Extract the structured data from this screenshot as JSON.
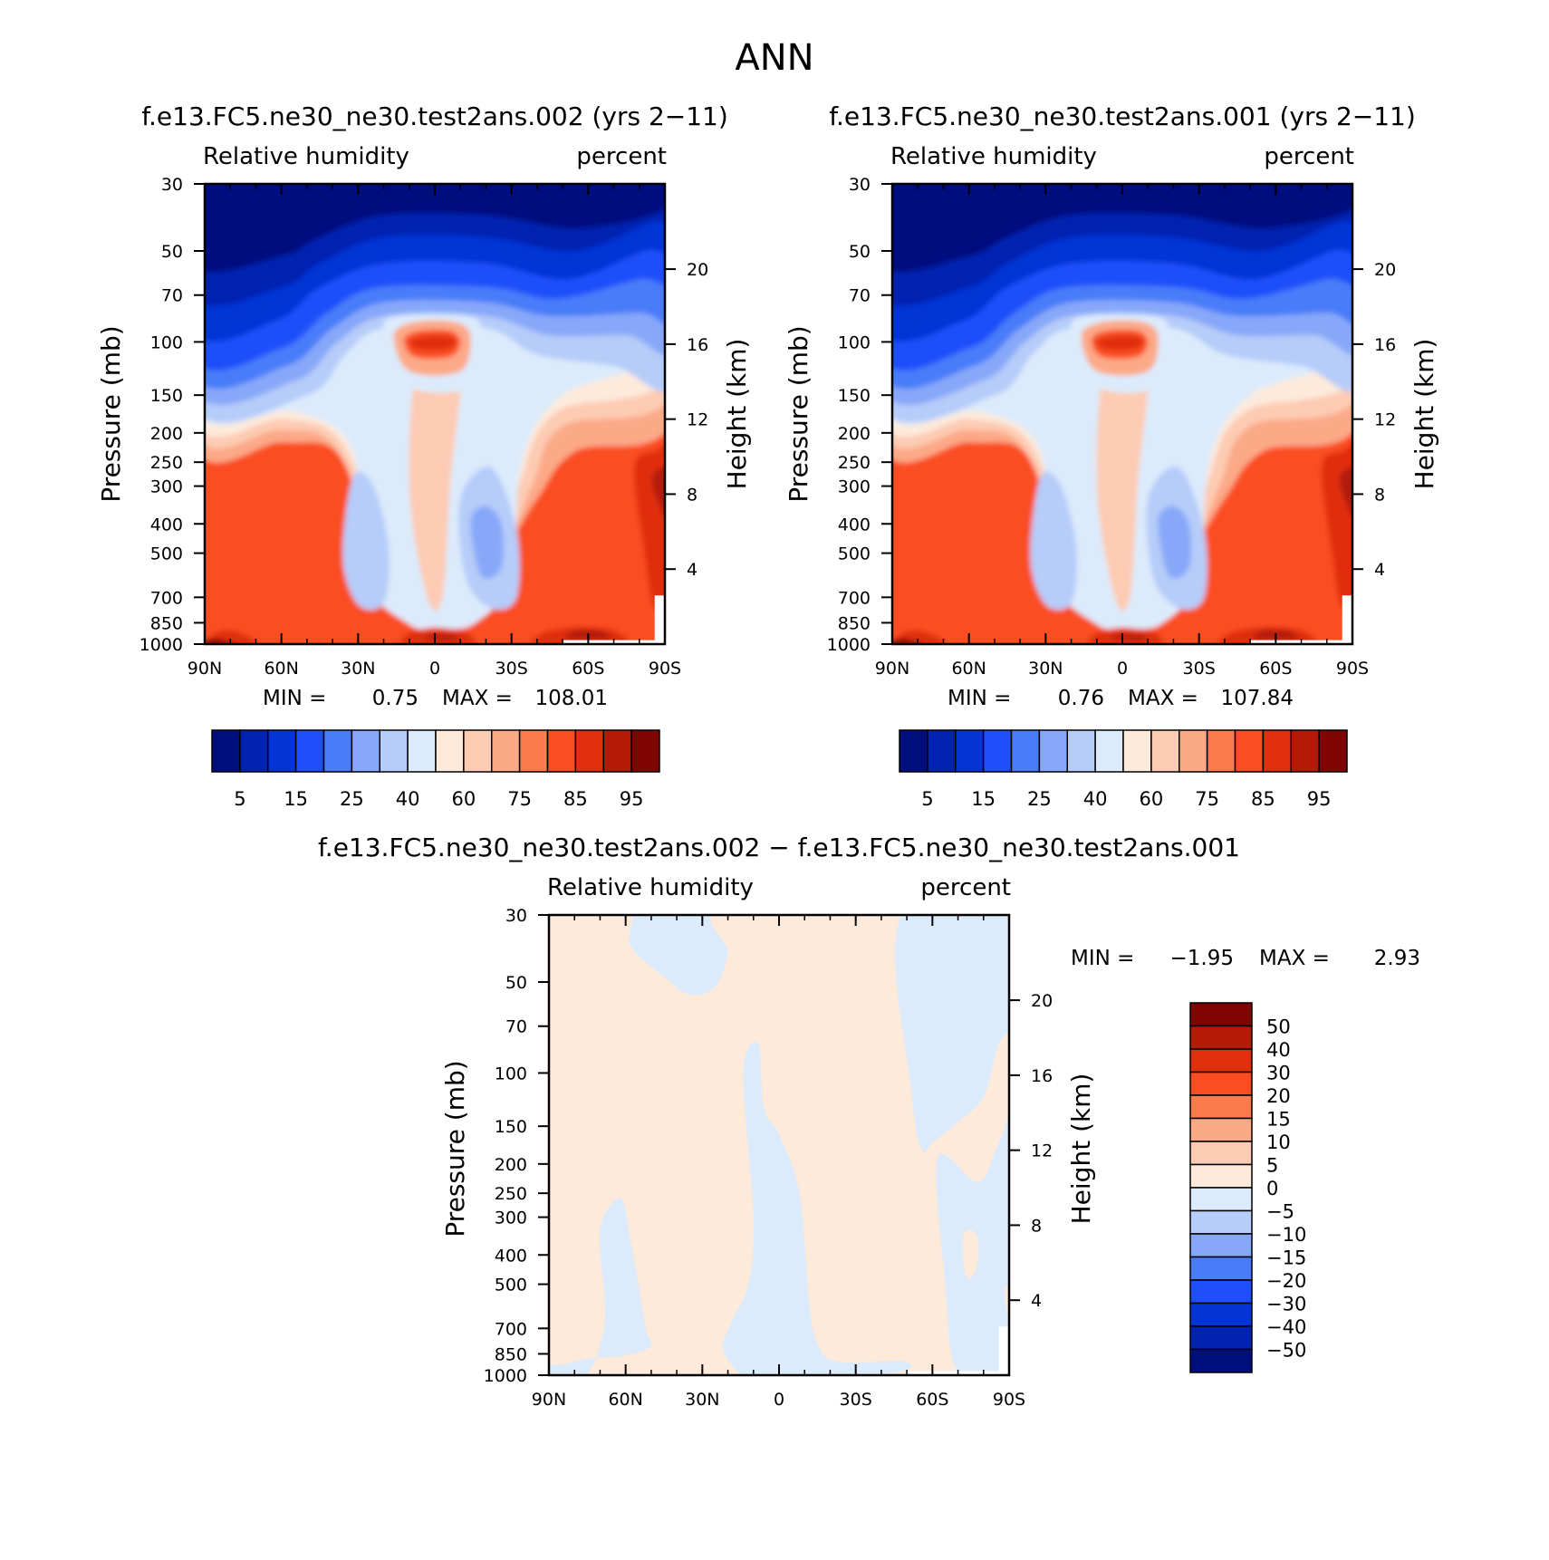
{
  "page_title": "ANN",
  "chart_data": [
    {
      "type": "heatmap",
      "case": "f.e13.FC5.ne30_ne30.test2ans.002 (yrs 2−11)",
      "variable": "Relative humidity",
      "units": "percent",
      "ylabel": "Pressure (mb)",
      "ylabel_right": "Height (km)",
      "x_ticks": [
        "90N",
        "60N",
        "30N",
        "0",
        "30S",
        "60S",
        "90S"
      ],
      "y_ticks": [
        "30",
        "50",
        "70",
        "100",
        "150",
        "200",
        "250",
        "300",
        "400",
        "500",
        "700",
        "850",
        "1000"
      ],
      "y_ticks_right": [
        "20",
        "16",
        "12",
        "8",
        "4"
      ],
      "ylim": [
        1000,
        30
      ],
      "stats": {
        "min_label": "MIN =",
        "min": "0.75",
        "max_label": "MAX =",
        "max": "108.01"
      },
      "colorbar": {
        "orientation": "horizontal",
        "labels": [
          "5",
          "15",
          "25",
          "40",
          "60",
          "75",
          "85",
          "95"
        ],
        "colors": [
          "#000e7e",
          "#0024b1",
          "#0534d6",
          "#1f4ffa",
          "#4a7bf9",
          "#87a8f9",
          "#b6ccf9",
          "#dcebfc",
          "#fdeadb",
          "#fdcbb3",
          "#fca987",
          "#fc7b4d",
          "#fa4d23",
          "#e02f0d",
          "#b31b07",
          "#7e0502"
        ]
      }
    },
    {
      "type": "heatmap",
      "case": "f.e13.FC5.ne30_ne30.test2ans.001 (yrs 2−11)",
      "variable": "Relative humidity",
      "units": "percent",
      "ylabel": "Pressure (mb)",
      "ylabel_right": "Height (km)",
      "x_ticks": [
        "90N",
        "60N",
        "30N",
        "0",
        "30S",
        "60S",
        "90S"
      ],
      "y_ticks": [
        "30",
        "50",
        "70",
        "100",
        "150",
        "200",
        "250",
        "300",
        "400",
        "500",
        "700",
        "850",
        "1000"
      ],
      "y_ticks_right": [
        "20",
        "16",
        "12",
        "8",
        "4"
      ],
      "ylim": [
        1000,
        30
      ],
      "stats": {
        "min_label": "MIN =",
        "min": "0.76",
        "max_label": "MAX =",
        "max": "107.84"
      },
      "colorbar": {
        "orientation": "horizontal",
        "labels": [
          "5",
          "15",
          "25",
          "40",
          "60",
          "75",
          "85",
          "95"
        ],
        "colors": [
          "#000e7e",
          "#0024b1",
          "#0534d6",
          "#1f4ffa",
          "#4a7bf9",
          "#87a8f9",
          "#b6ccf9",
          "#dcebfc",
          "#fdeadb",
          "#fdcbb3",
          "#fca987",
          "#fc7b4d",
          "#fa4d23",
          "#e02f0d",
          "#b31b07",
          "#7e0502"
        ]
      }
    },
    {
      "type": "heatmap",
      "case": "f.e13.FC5.ne30_ne30.test2ans.002 − f.e13.FC5.ne30_ne30.test2ans.001",
      "variable": "Relative humidity",
      "units": "percent",
      "ylabel": "Pressure (mb)",
      "ylabel_right": "Height (km)",
      "x_ticks": [
        "90N",
        "60N",
        "30N",
        "0",
        "30S",
        "60S",
        "90S"
      ],
      "y_ticks": [
        "30",
        "50",
        "70",
        "100",
        "150",
        "200",
        "250",
        "300",
        "400",
        "500",
        "700",
        "850",
        "1000"
      ],
      "y_ticks_right": [
        "20",
        "16",
        "12",
        "8",
        "4"
      ],
      "ylim": [
        1000,
        30
      ],
      "stats": {
        "min_label": "MIN =",
        "min": "−1.95",
        "max_label": "MAX =",
        "max": "2.93"
      },
      "colorbar": {
        "orientation": "vertical",
        "labels": [
          "50",
          "40",
          "30",
          "20",
          "15",
          "10",
          "5",
          "0",
          "−5",
          "−10",
          "−15",
          "−20",
          "−30",
          "−40",
          "−50"
        ],
        "colors": [
          "#7e0502",
          "#b31b07",
          "#e02f0d",
          "#fa4d23",
          "#fc7b4d",
          "#fca987",
          "#fdcbb3",
          "#fdeadb",
          "#dcebfc",
          "#b6ccf9",
          "#87a8f9",
          "#4a7bf9",
          "#1f4ffa",
          "#0534d6",
          "#0024b1",
          "#000e7e"
        ]
      }
    }
  ]
}
